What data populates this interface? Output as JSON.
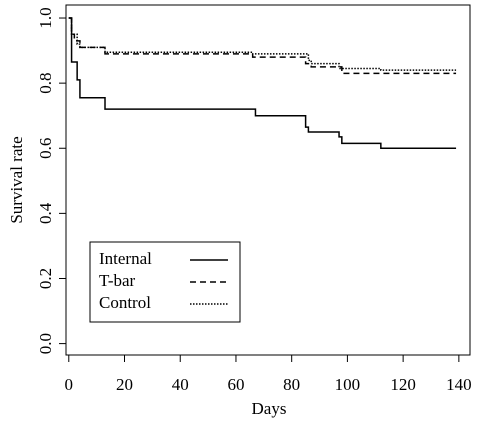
{
  "chart_data": {
    "type": "step",
    "xlabel": "Days",
    "ylabel": "Survival rate",
    "xlim": [
      -1,
      144
    ],
    "ylim": [
      -0.035,
      1.04
    ],
    "xticks": [
      0,
      20,
      40,
      60,
      80,
      100,
      120,
      140
    ],
    "yticks": [
      {
        "value": 0,
        "label": "0.0"
      },
      0.2,
      0.4,
      0.6,
      0.8,
      {
        "value": 1,
        "label": "1.0"
      }
    ],
    "legend": "bottom-left",
    "series": [
      {
        "name": "Internal",
        "color": "#000000",
        "linestyle": "solid",
        "x": [
          0,
          1,
          3,
          4,
          13,
          67,
          85,
          86,
          97,
          98,
          112,
          139
        ],
        "values": [
          1,
          0.865,
          0.81,
          0.755,
          0.72,
          0.7,
          0.665,
          0.65,
          0.635,
          0.615,
          0.6,
          0.6
        ]
      },
      {
        "name": "T-bar",
        "color": "#000000",
        "linestyle": "dashed",
        "x": [
          0,
          1,
          2,
          4,
          13,
          66,
          85,
          87,
          98,
          139
        ],
        "values": [
          1,
          0.95,
          0.93,
          0.91,
          0.89,
          0.88,
          0.86,
          0.85,
          0.83,
          0.83
        ]
      },
      {
        "name": "Control",
        "color": "#000000",
        "linestyle": "dotted",
        "x": [
          0,
          1,
          3,
          4,
          13,
          66,
          86,
          87,
          97,
          112,
          139
        ],
        "values": [
          1,
          0.95,
          0.92,
          0.91,
          0.895,
          0.89,
          0.87,
          0.86,
          0.845,
          0.84,
          0.84
        ]
      }
    ]
  }
}
